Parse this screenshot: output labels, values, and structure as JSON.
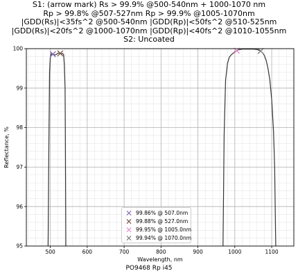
{
  "title_lines": [
    "S1: (arrow mark) Rs > 99.9% @500-540nm + 1000-1070 nm",
    "Rp > 99.8% @507-527nm  Rp > 99.9% @1005-1070nm",
    "|GDD(Rs)|<35fs^2 @500-540nm  |GDD(Rp)|<50fs^2 @510-525nm",
    "|GDD(Rs)|<20fs^2 @1000-1070nm |GDD(Rp)|<40fs^2 @1010-1055nm",
    "S2: Uncoated"
  ],
  "footer": "PO9468 Rp i45",
  "chart_data": {
    "type": "line",
    "xlabel": "Wavelength, nm",
    "ylabel": "Reflectance, %",
    "xlim": [
      435,
      1160
    ],
    "ylim": [
      95,
      100
    ],
    "xticks": [
      500,
      600,
      700,
      800,
      900,
      1000,
      1100
    ],
    "yticks": [
      95,
      96,
      97,
      98,
      99,
      100
    ],
    "grid": true,
    "minor_grid": true,
    "legend_position": "lower-center",
    "series": [
      {
        "color": "#333333",
        "x": [
          494,
          496,
          498,
          500,
          502,
          504,
          507,
          510,
          513,
          516,
          520,
          524,
          527,
          530,
          533,
          536,
          538,
          540,
          541,
          542
        ],
        "y": [
          95,
          97.5,
          99.4,
          99.78,
          99.87,
          99.86,
          99.86,
          99.85,
          99.84,
          99.85,
          99.88,
          99.89,
          99.88,
          99.87,
          99.88,
          99.85,
          99.6,
          99.0,
          97.5,
          95
        ]
      },
      {
        "color": "#333333",
        "x": [
          968,
          971,
          975,
          980,
          985,
          990,
          995,
          1000,
          1005,
          1010,
          1020,
          1030,
          1040,
          1050,
          1060,
          1065,
          1070,
          1075,
          1080,
          1085,
          1090,
          1095,
          1100,
          1105,
          1108,
          1111
        ],
        "y": [
          95,
          97.8,
          99.2,
          99.62,
          99.78,
          99.84,
          99.88,
          99.92,
          99.95,
          99.97,
          99.99,
          99.99,
          99.99,
          99.99,
          99.98,
          99.96,
          99.94,
          99.9,
          99.83,
          99.7,
          99.5,
          99.2,
          98.7,
          97.9,
          97.0,
          95
        ]
      }
    ],
    "markers": [
      {
        "label": "99.86% @ 507.0nm",
        "x": 507,
        "y": 99.86,
        "color": "#8a6fb8"
      },
      {
        "label": "99.88% @ 527.0nm",
        "x": 527,
        "y": 99.88,
        "color": "#7a5548"
      },
      {
        "label": "99.95% @ 1005.0nm",
        "x": 1005,
        "y": 99.95,
        "color": "#e58fcf"
      },
      {
        "label": "99.94% @ 1070.0nm",
        "x": 1070,
        "y": 99.94,
        "color": "#808080"
      }
    ]
  }
}
